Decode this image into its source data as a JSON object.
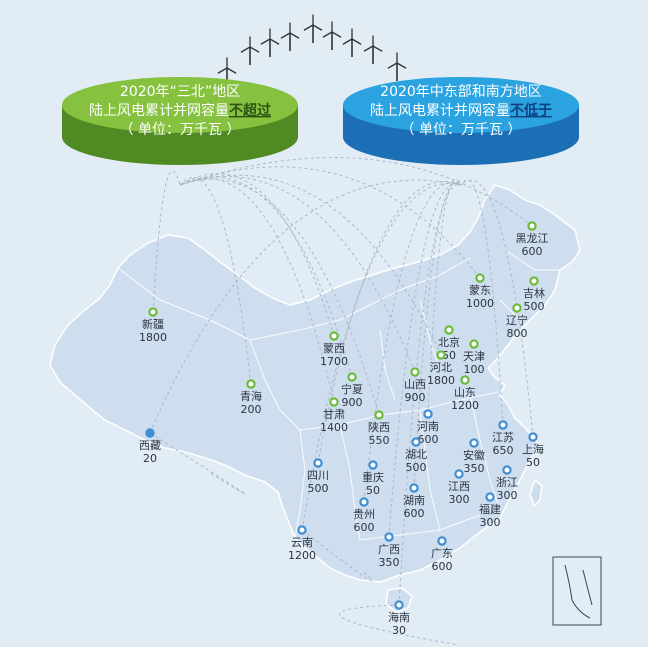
{
  "north_panel": {
    "line1_a": "2020年",
    "line1_b": "“三北”",
    "line1_c": "地区",
    "line2_a": "陆上风电累计并网容量",
    "line2_b": "不超过",
    "line3": "（ 单位：万千瓦 ）",
    "color": "#84c13f"
  },
  "south_panel": {
    "line1": "2020年中东部和南方地区",
    "line2_a": "陆上风电累计并网容量",
    "line2_b": "不低于",
    "line3": "（ 单位：万千瓦 ）",
    "color": "#2aa0de"
  },
  "icons": {
    "turbine": "wind-turbine-icon",
    "marker": "location-circle-icon"
  },
  "colors": {
    "map_fill": "#cfdeee",
    "background": "#e2ecf5",
    "north_marker": "#6dbb3e",
    "south_marker": "#3f8fd2"
  },
  "provinces": [
    {
      "name": "黑龙江",
      "value": "600",
      "group": "north"
    },
    {
      "name": "蒙东",
      "value": "1000",
      "group": "north"
    },
    {
      "name": "吉林",
      "value": "500",
      "group": "north"
    },
    {
      "name": "辽宁",
      "value": "800",
      "group": "north"
    },
    {
      "name": "新疆",
      "value": "1800",
      "group": "north"
    },
    {
      "name": "蒙西",
      "value": "1700",
      "group": "north"
    },
    {
      "name": "北京",
      "value": "50",
      "group": "north"
    },
    {
      "name": "天津",
      "value": "100",
      "group": "north"
    },
    {
      "name": "河北",
      "value": "1800",
      "group": "north"
    },
    {
      "name": "宁夏",
      "value": "900",
      "group": "north"
    },
    {
      "name": "山西",
      "value": "900",
      "group": "north"
    },
    {
      "name": "青海",
      "value": "200",
      "group": "north"
    },
    {
      "name": "山东",
      "value": "1200",
      "group": "north"
    },
    {
      "name": "甘肃",
      "value": "1400",
      "group": "north"
    },
    {
      "name": "陕西",
      "value": "550",
      "group": "north"
    },
    {
      "name": "河南",
      "value": "600",
      "group": "south"
    },
    {
      "name": "江苏",
      "value": "650",
      "group": "south"
    },
    {
      "name": "安徽",
      "value": "350",
      "group": "south"
    },
    {
      "name": "上海",
      "value": "50",
      "group": "south"
    },
    {
      "name": "西藏",
      "value": "20",
      "group": "south"
    },
    {
      "name": "湖北",
      "value": "500",
      "group": "south"
    },
    {
      "name": "四川",
      "value": "500",
      "group": "south"
    },
    {
      "name": "重庆",
      "value": "50",
      "group": "south"
    },
    {
      "name": "浙江",
      "value": "300",
      "group": "south"
    },
    {
      "name": "江西",
      "value": "300",
      "group": "south"
    },
    {
      "name": "湖南",
      "value": "600",
      "group": "south"
    },
    {
      "name": "贵州",
      "value": "600",
      "group": "south"
    },
    {
      "name": "福建",
      "value": "300",
      "group": "south"
    },
    {
      "name": "云南",
      "value": "1200",
      "group": "south"
    },
    {
      "name": "广西",
      "value": "350",
      "group": "south"
    },
    {
      "name": "广东",
      "value": "600",
      "group": "south"
    },
    {
      "name": "海南",
      "value": "30",
      "group": "south"
    }
  ]
}
